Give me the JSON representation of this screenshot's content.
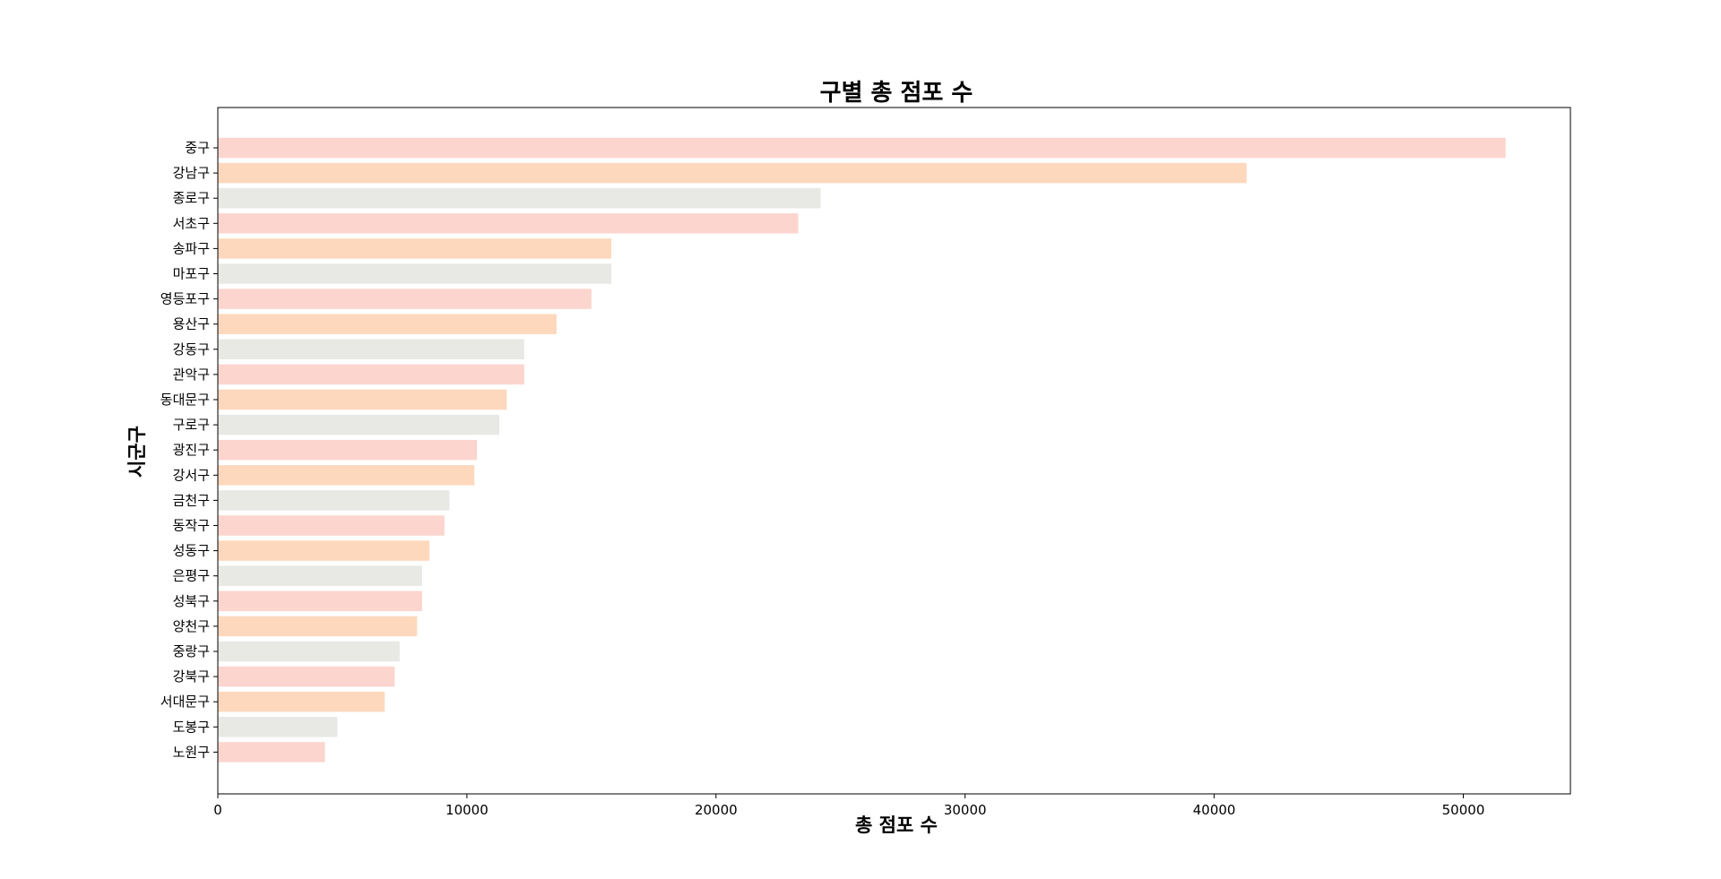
{
  "chart_data": {
    "type": "bar",
    "orientation": "horizontal",
    "title": "구별 총 점포 수",
    "xlabel": "총 점포 수",
    "ylabel": "시군구",
    "xlim": [
      0,
      54300
    ],
    "xticks": [
      0,
      10000,
      20000,
      30000,
      40000,
      50000
    ],
    "grid": false,
    "bar_colors": [
      "#fcd5ce",
      "#fed8bc",
      "#e8e8e4"
    ],
    "categories": [
      "중구",
      "강남구",
      "종로구",
      "서초구",
      "송파구",
      "마포구",
      "영등포구",
      "용산구",
      "강동구",
      "관악구",
      "동대문구",
      "구로구",
      "광진구",
      "강서구",
      "금천구",
      "동작구",
      "성동구",
      "은평구",
      "성북구",
      "양천구",
      "중랑구",
      "강북구",
      "서대문구",
      "도봉구",
      "노원구"
    ],
    "values": [
      51700,
      41300,
      24200,
      23300,
      15800,
      15800,
      15000,
      13600,
      12300,
      12300,
      11600,
      11300,
      10400,
      10300,
      9300,
      9100,
      8500,
      8200,
      8200,
      8000,
      7300,
      7100,
      6700,
      4800,
      4300
    ]
  }
}
